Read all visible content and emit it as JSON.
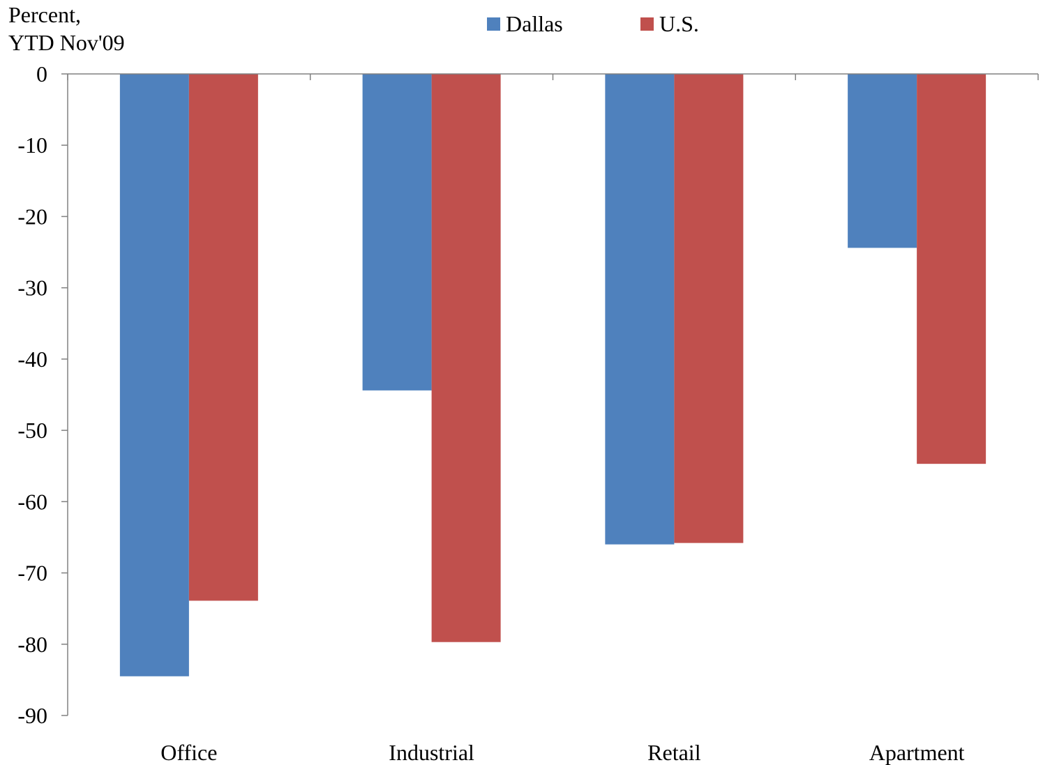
{
  "chart_data": {
    "type": "bar",
    "ylabel": [
      "Percent,",
      "YTD Nov'09"
    ],
    "categories": [
      "Office",
      "Industrial",
      "Retail",
      "Apartment"
    ],
    "series": [
      {
        "name": "Dallas",
        "color": "#4F81BD",
        "values": [
          -84.5,
          -44.4,
          -66.0,
          -24.4
        ]
      },
      {
        "name": "U.S.",
        "color": "#C0504D",
        "values": [
          -73.9,
          -79.7,
          -65.8,
          -54.7
        ]
      }
    ],
    "ylim": [
      -90,
      0
    ],
    "yticks": [
      0,
      -10,
      -20,
      -30,
      -40,
      -50,
      -60,
      -70,
      -80,
      -90
    ],
    "ytick_labels": [
      "0",
      "-10",
      "-20",
      "-30",
      "-40",
      "-50",
      "-60",
      "-70",
      "-80",
      "-90"
    ],
    "legend": "top-center",
    "grid": false
  }
}
